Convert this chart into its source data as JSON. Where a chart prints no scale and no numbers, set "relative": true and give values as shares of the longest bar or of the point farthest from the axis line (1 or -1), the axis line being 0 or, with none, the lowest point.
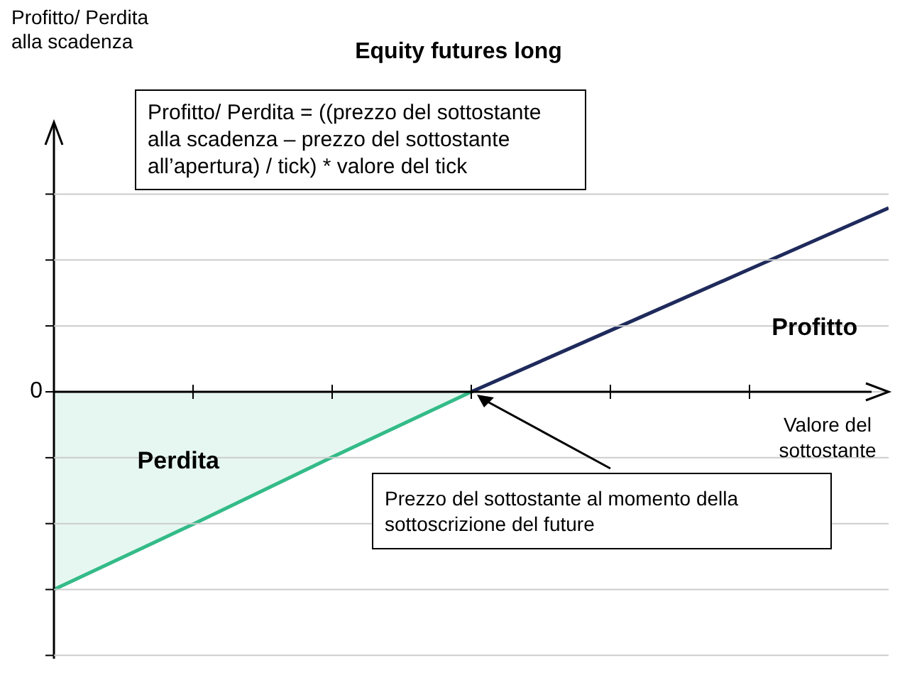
{
  "chart_data": {
    "type": "line",
    "title": "Equity futures long",
    "xlabel": "Valore del sottostante",
    "categories": [
      null,
      null,
      null,
      null,
      null,
      null,
      null
    ],
    "relative": true,
    "grid": "y",
    "series": [
      {
        "name": "Perdita",
        "type": "area",
        "color": "#33bb88",
        "values": [
          -1,
          -0.67,
          -0.33,
          0,
          null,
          null,
          null
        ]
      },
      {
        "name": "Profitto",
        "color": "#1f2a5c",
        "values": [
          null,
          null,
          null,
          0,
          0.31,
          0.62,
          0.93
        ]
      }
    ],
    "annotations": [
      "Profitto/ Perdita = ((prezzo del sottostante alla scadenza – prezzo del sottostante all’apertura) / tick) * valore del tick",
      "Prezzo del sottostante al momento della sottoscrizione del future",
      "0",
      "Profitto/ Perdita alla scadenza"
    ]
  }
}
